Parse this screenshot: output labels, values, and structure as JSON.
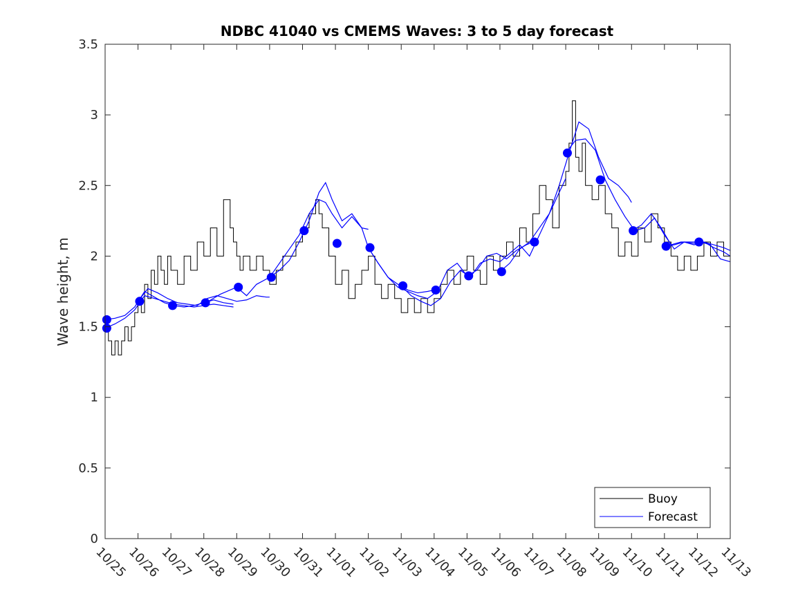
{
  "chart_data": {
    "type": "line",
    "title": "NDBC 41040 vs CMEMS Waves: 3 to 5 day forecast",
    "xlabel": "",
    "ylabel": "Wave height, m",
    "xlim": [
      0,
      19
    ],
    "ylim": [
      0,
      3.5
    ],
    "y_ticks": [
      0,
      0.5,
      1,
      1.5,
      2,
      2.5,
      3,
      3.5
    ],
    "y_tick_labels": [
      "0",
      "0.5",
      "1",
      "1.5",
      "2",
      "2.5",
      "3",
      "3.5"
    ],
    "x_ticks": [
      0,
      1,
      2,
      3,
      4,
      5,
      6,
      7,
      8,
      9,
      10,
      11,
      12,
      13,
      14,
      15,
      16,
      17,
      18,
      19
    ],
    "x_tick_labels": [
      "10/25",
      "10/26",
      "10/27",
      "10/28",
      "10/29",
      "10/30",
      "10/31",
      "11/01",
      "11/02",
      "11/03",
      "11/04",
      "11/05",
      "11/06",
      "11/07",
      "11/08",
      "11/09",
      "11/10",
      "11/11",
      "11/12",
      "11/13"
    ],
    "x_units": "days since 10/25",
    "grid": false,
    "legend": {
      "location": "bottom-right",
      "entries": [
        {
          "name": "Buoy",
          "color": "#000000"
        },
        {
          "name": "Forecast",
          "color": "#0000ff"
        }
      ]
    },
    "colors": {
      "buoy": "#000000",
      "forecast": "#0000ff",
      "axes": "#262626"
    },
    "series": [
      {
        "name": "Buoy",
        "style": "stair",
        "x": [
          0,
          0.1,
          0.2,
          0.3,
          0.4,
          0.5,
          0.6,
          0.7,
          0.8,
          0.9,
          1.0,
          1.1,
          1.2,
          1.3,
          1.4,
          1.5,
          1.6,
          1.7,
          1.8,
          1.9,
          2.0,
          2.2,
          2.4,
          2.6,
          2.8,
          3.0,
          3.2,
          3.4,
          3.6,
          3.8,
          3.9,
          4.0,
          4.1,
          4.2,
          4.4,
          4.6,
          4.8,
          5.0,
          5.2,
          5.4,
          5.6,
          5.8,
          6.0,
          6.2,
          6.4,
          6.5,
          6.6,
          6.8,
          7.0,
          7.2,
          7.4,
          7.6,
          7.8,
          8.0,
          8.2,
          8.4,
          8.6,
          8.8,
          9.0,
          9.2,
          9.4,
          9.6,
          9.8,
          10.0,
          10.2,
          10.4,
          10.6,
          10.8,
          11.0,
          11.2,
          11.4,
          11.6,
          11.8,
          12.0,
          12.2,
          12.4,
          12.6,
          12.8,
          13.0,
          13.2,
          13.4,
          13.6,
          13.8,
          14.0,
          14.1,
          14.2,
          14.3,
          14.4,
          14.5,
          14.6,
          14.8,
          15.0,
          15.2,
          15.4,
          15.6,
          15.8,
          16.0,
          16.2,
          16.4,
          16.6,
          16.8,
          17.0,
          17.2,
          17.4,
          17.6,
          17.8,
          18.0,
          18.2,
          18.4,
          18.6,
          18.8,
          19.0
        ],
        "values": [
          1.5,
          1.4,
          1.3,
          1.4,
          1.3,
          1.4,
          1.5,
          1.4,
          1.5,
          1.6,
          1.7,
          1.6,
          1.8,
          1.7,
          1.9,
          1.8,
          2.0,
          1.9,
          1.8,
          2.0,
          1.9,
          1.8,
          2.0,
          1.9,
          2.1,
          2.0,
          2.2,
          2.0,
          2.4,
          2.2,
          2.1,
          2.0,
          1.9,
          2.0,
          1.9,
          2.0,
          1.9,
          1.8,
          1.9,
          2.0,
          2.0,
          2.1,
          2.2,
          2.3,
          2.4,
          2.3,
          2.2,
          2.0,
          1.8,
          1.9,
          1.7,
          1.8,
          1.9,
          2.0,
          1.8,
          1.7,
          1.8,
          1.7,
          1.6,
          1.7,
          1.6,
          1.7,
          1.6,
          1.7,
          1.8,
          1.9,
          1.8,
          1.9,
          2.0,
          1.9,
          1.8,
          2.0,
          1.9,
          2.0,
          2.1,
          2.0,
          2.2,
          2.1,
          2.3,
          2.5,
          2.4,
          2.2,
          2.5,
          2.6,
          2.8,
          3.1,
          2.7,
          2.6,
          2.8,
          2.5,
          2.4,
          2.5,
          2.3,
          2.2,
          2.0,
          2.1,
          2.0,
          2.2,
          2.1,
          2.3,
          2.2,
          2.1,
          2.0,
          1.9,
          2.0,
          1.9,
          2.0,
          2.1,
          2.0,
          2.1,
          2.0,
          2.0
        ]
      },
      {
        "name": "Forecast",
        "style": "segments",
        "segments": [
          {
            "x": [
              0.0,
              0.3,
              0.6,
              0.9,
              1.2,
              1.5,
              1.8,
              2.1,
              2.4,
              2.7,
              3.0,
              3.3,
              3.6,
              3.9
            ],
            "values": [
              1.49,
              1.52,
              1.56,
              1.62,
              1.72,
              1.7,
              1.68,
              1.66,
              1.65,
              1.64,
              1.65,
              1.66,
              1.65,
              1.64
            ]
          },
          {
            "x": [
              0.0,
              0.3,
              0.6,
              0.9,
              1.2,
              1.5,
              1.8,
              2.1,
              2.4,
              2.7,
              3.0,
              3.3,
              3.6,
              3.9
            ],
            "values": [
              1.55,
              1.56,
              1.58,
              1.64,
              1.75,
              1.71,
              1.67,
              1.65,
              1.64,
              1.65,
              1.67,
              1.69,
              1.67,
              1.66
            ]
          },
          {
            "x": [
              1.0,
              1.3,
              1.6,
              1.9,
              2.2,
              2.5,
              2.8,
              3.1,
              3.4,
              3.7,
              4.0,
              4.3,
              4.6,
              4.9,
              5.0
            ],
            "values": [
              1.68,
              1.77,
              1.74,
              1.7,
              1.67,
              1.66,
              1.65,
              1.7,
              1.72,
              1.7,
              1.68,
              1.69,
              1.72,
              1.71,
              1.71
            ]
          },
          {
            "x": [
              3.0,
              3.5,
              4.0,
              4.3,
              4.6,
              5.0,
              5.3,
              5.6,
              5.9,
              6.2,
              6.5,
              6.7,
              6.9,
              7.2,
              7.5,
              7.8,
              8.0
            ],
            "values": [
              1.66,
              1.73,
              1.78,
              1.72,
              1.8,
              1.85,
              1.95,
              2.05,
              2.15,
              2.3,
              2.4,
              2.38,
              2.3,
              2.2,
              2.28,
              2.2,
              2.19
            ]
          },
          {
            "x": [
              5.0,
              5.3,
              5.6,
              5.9,
              6.2,
              6.5,
              6.7,
              6.9,
              7.2,
              7.5,
              7.8,
              8.0,
              8.3,
              8.6,
              8.9,
              9.2,
              9.5,
              9.8,
              10.0
            ],
            "values": [
              1.85,
              1.9,
              1.97,
              2.1,
              2.25,
              2.45,
              2.52,
              2.4,
              2.25,
              2.3,
              2.2,
              2.06,
              1.95,
              1.85,
              1.8,
              1.76,
              1.74,
              1.75,
              1.76
            ]
          },
          {
            "x": [
              8.0,
              8.3,
              8.6,
              8.9,
              9.2,
              9.5,
              9.8,
              10.1,
              10.4,
              10.7,
              11.0,
              11.3,
              11.6,
              11.9,
              12.2,
              12.5,
              12.8,
              13.0
            ],
            "values": [
              2.06,
              1.95,
              1.85,
              1.78,
              1.75,
              1.72,
              1.7,
              1.75,
              1.9,
              1.95,
              1.86,
              1.9,
              2.0,
              2.02,
              1.98,
              2.04,
              2.08,
              2.1
            ]
          },
          {
            "x": [
              9.0,
              9.3,
              9.6,
              9.9,
              10.2,
              10.5,
              10.8,
              11.1,
              11.4,
              11.7,
              12.0,
              12.3,
              12.6,
              12.9,
              13.2,
              13.5,
              13.8,
              14.0
            ],
            "values": [
              1.79,
              1.72,
              1.68,
              1.65,
              1.7,
              1.82,
              1.9,
              1.85,
              1.95,
              1.98,
              1.96,
              2.02,
              2.08,
              2.0,
              2.15,
              2.3,
              2.45,
              2.55
            ]
          },
          {
            "x": [
              12.0,
              12.3,
              12.6,
              12.9,
              13.2,
              13.5,
              13.8,
              14.1,
              14.4,
              14.7,
              15.0,
              15.3,
              15.6,
              15.9,
              16.0
            ],
            "values": [
              1.89,
              1.95,
              2.05,
              2.1,
              2.2,
              2.3,
              2.5,
              2.73,
              2.95,
              2.9,
              2.7,
              2.55,
              2.5,
              2.42,
              2.38
            ]
          },
          {
            "x": [
              14.0,
              14.3,
              14.6,
              14.9,
              15.2,
              15.5,
              15.8,
              16.1,
              16.4,
              16.7,
              17.0,
              17.3,
              17.6,
              17.9,
              18.2,
              18.5,
              18.8,
              19.0
            ],
            "values": [
              2.73,
              2.82,
              2.83,
              2.75,
              2.54,
              2.4,
              2.28,
              2.18,
              2.2,
              2.27,
              2.15,
              2.05,
              2.1,
              2.08,
              2.1,
              2.06,
              2.03,
              2.0
            ]
          },
          {
            "x": [
              16.0,
              16.3,
              16.6,
              16.9,
              17.2,
              17.5,
              17.8,
              18.1,
              18.4,
              18.7,
              19.0
            ],
            "values": [
              2.18,
              2.22,
              2.3,
              2.2,
              2.08,
              2.1,
              2.1,
              2.1,
              2.08,
              1.98,
              1.96
            ]
          },
          {
            "x": [
              17.0,
              17.3,
              17.6,
              17.9,
              18.2,
              18.5,
              18.8,
              19.0
            ],
            "values": [
              2.07,
              2.08,
              2.1,
              2.09,
              2.1,
              2.08,
              2.06,
              2.04
            ]
          }
        ]
      },
      {
        "name": "Forecast start points",
        "style": "markers",
        "x": [
          0.05,
          0.05,
          1.05,
          2.05,
          3.05,
          4.05,
          5.05,
          6.05,
          7.05,
          8.05,
          9.05,
          10.05,
          11.05,
          12.05,
          13.05,
          14.05,
          15.05,
          16.05,
          17.05,
          18.05
        ],
        "values": [
          1.55,
          1.49,
          1.68,
          1.65,
          1.67,
          1.78,
          1.85,
          2.18,
          2.09,
          2.06,
          1.79,
          1.76,
          1.86,
          1.89,
          2.1,
          2.73,
          2.54,
          2.18,
          2.07,
          2.1
        ]
      }
    ]
  }
}
